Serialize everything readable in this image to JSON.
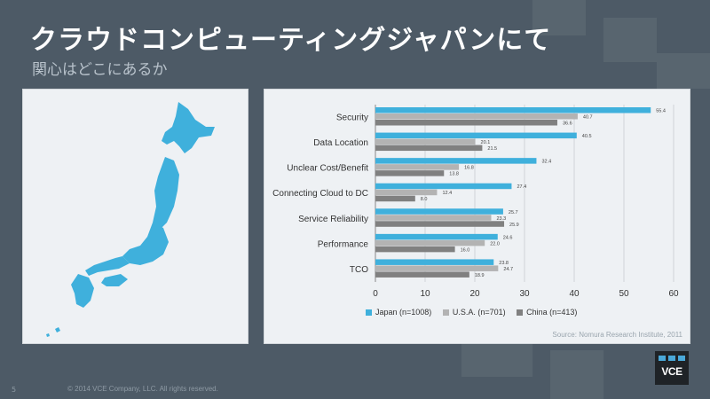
{
  "slide": {
    "title": "クラウドコンピューティングジャパンにて",
    "subtitle": "関心はどこにあるか",
    "page_number": "5",
    "copyright": "© 2014 VCE Company, LLC. All rights reserved.",
    "logo_text": "VCE"
  },
  "colors": {
    "japan": "#3fb0dc",
    "usa": "#b3b3b3",
    "china": "#808080",
    "map_fill": "#3fb0dc"
  },
  "chart_data": {
    "type": "bar",
    "orientation": "horizontal",
    "categories": [
      "Security",
      "Data Location",
      "Unclear Cost/Benefit",
      "Connecting Cloud to DC",
      "Service Reliability",
      "Performance",
      "TCO"
    ],
    "series": [
      {
        "name": "Japan (n=1008)",
        "values": [
          55.4,
          40.5,
          32.4,
          27.4,
          25.7,
          24.6,
          23.8
        ]
      },
      {
        "name": "U.S.A. (n=701)",
        "values": [
          40.7,
          20.1,
          16.8,
          12.4,
          23.3,
          22.0,
          24.7
        ]
      },
      {
        "name": "China (n=413)",
        "values": [
          36.6,
          21.5,
          13.8,
          8.0,
          25.9,
          16.0,
          18.9
        ]
      }
    ],
    "xlim": [
      0,
      60
    ],
    "xticks": [
      "0",
      "10",
      "20",
      "30",
      "40",
      "50",
      "60"
    ],
    "grid": true,
    "legend_position": "bottom",
    "source": "Source: Nomura Research Institute, 2011"
  }
}
